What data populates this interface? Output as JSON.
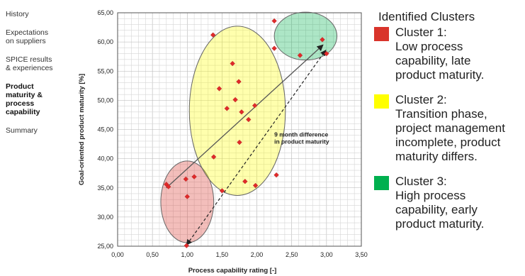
{
  "sidebar": {
    "items": [
      {
        "label": "History",
        "active": false
      },
      {
        "label": "Expectations\non suppliers",
        "active": false
      },
      {
        "label": "SPICE results\n& experiences",
        "active": false
      },
      {
        "label": "Product\nmaturity &\nprocess\ncapability",
        "active": true
      },
      {
        "label": "Summary",
        "active": false
      }
    ]
  },
  "legend": {
    "title": "Identified Clusters",
    "entries": [
      {
        "name": "Cluster 1:",
        "description": "Low process\ncapability, late\nproduct maturity.",
        "color": "#d9342b"
      },
      {
        "name": "Cluster 2:",
        "description": "Transition phase,\nproject management\nincomplete, product\nmaturity differs.",
        "color": "#ffff00"
      },
      {
        "name": "Cluster 3:",
        "description": "High process\ncapability, early\nproduct maturity.",
        "color": "#00b04f"
      }
    ]
  },
  "chart_data": {
    "type": "scatter",
    "xlabel": "Process capability rating [-]",
    "ylabel": "Goal-oriented product maturity [%]",
    "xlim": [
      0,
      3.5
    ],
    "ylim": [
      25,
      65
    ],
    "xticks": [
      "0,00",
      "0,50",
      "1,00",
      "1,50",
      "2,00",
      "2,50",
      "3,00",
      "3,50"
    ],
    "yticks": [
      "25,00",
      "30,00",
      "35,00",
      "40,00",
      "45,00",
      "50,00",
      "55,00",
      "60,00",
      "65,00"
    ],
    "grid": true,
    "marker_color": "#e02a2a",
    "points": [
      [
        0.7,
        35.6
      ],
      [
        0.73,
        35.2
      ],
      [
        0.98,
        36.5
      ],
      [
        1.0,
        33.5
      ],
      [
        1.1,
        36.9
      ],
      [
        0.99,
        25.1
      ],
      [
        1.37,
        61.2
      ],
      [
        1.46,
        52.0
      ],
      [
        1.57,
        48.6
      ],
      [
        1.65,
        56.3
      ],
      [
        1.69,
        50.1
      ],
      [
        1.74,
        53.2
      ],
      [
        1.75,
        42.8
      ],
      [
        1.78,
        48.0
      ],
      [
        1.83,
        36.1
      ],
      [
        1.88,
        46.7
      ],
      [
        1.97,
        49.1
      ],
      [
        1.98,
        35.4
      ],
      [
        1.38,
        40.3
      ],
      [
        1.5,
        34.5
      ],
      [
        2.25,
        63.6
      ],
      [
        2.25,
        58.9
      ],
      [
        2.28,
        37.2
      ],
      [
        2.62,
        57.7
      ],
      [
        2.94,
        60.4
      ],
      [
        3.0,
        58.0
      ]
    ],
    "clusters": [
      {
        "name": "Cluster 1",
        "cx": 1.0,
        "cy": 32.6,
        "rx": 0.38,
        "ry": 7.0,
        "color": "#d9342b"
      },
      {
        "name": "Cluster 2",
        "cx": 1.72,
        "cy": 48.2,
        "rx": 0.69,
        "ry": 14.5,
        "color": "#ffff00"
      },
      {
        "name": "Cluster 3",
        "cx": 2.7,
        "cy": 61.0,
        "rx": 0.45,
        "ry": 4.1,
        "color": "#00b04f"
      }
    ],
    "trend_line": {
      "from": [
        0.7,
        35.0
      ],
      "to": [
        2.95,
        59.5
      ]
    },
    "dashed_arrow": {
      "from": [
        0.99,
        25.2
      ],
      "to": [
        2.99,
        58.6
      ]
    },
    "annotation": {
      "text_lines": [
        "9 month difference",
        "in product maturity"
      ],
      "x": 2.25,
      "y": 43.8
    }
  }
}
